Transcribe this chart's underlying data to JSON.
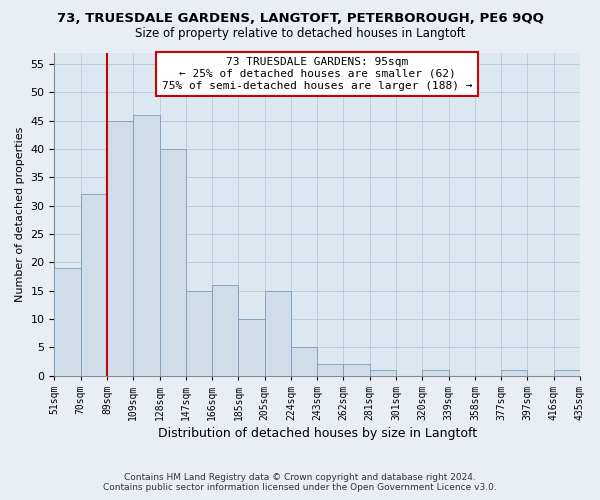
{
  "title": "73, TRUESDALE GARDENS, LANGTOFT, PETERBOROUGH, PE6 9QQ",
  "subtitle": "Size of property relative to detached houses in Langtoft",
  "xlabel": "Distribution of detached houses by size in Langtoft",
  "ylabel": "Number of detached properties",
  "bar_labels": [
    "51sqm",
    "70sqm",
    "89sqm",
    "109sqm",
    "128sqm",
    "147sqm",
    "166sqm",
    "185sqm",
    "205sqm",
    "224sqm",
    "243sqm",
    "262sqm",
    "281sqm",
    "301sqm",
    "320sqm",
    "339sqm",
    "358sqm",
    "377sqm",
    "397sqm",
    "416sqm",
    "435sqm"
  ],
  "bar_values": [
    19,
    32,
    45,
    46,
    40,
    15,
    16,
    10,
    15,
    5,
    2,
    2,
    1,
    0,
    1,
    0,
    0,
    1,
    0,
    1
  ],
  "bar_color": "#cfdce9",
  "bar_edge_color": "#7a9cbf",
  "vline_x": 2,
  "vline_color": "#cc0000",
  "annotation_text": "73 TRUESDALE GARDENS: 95sqm\n← 25% of detached houses are smaller (62)\n75% of semi-detached houses are larger (188) →",
  "annotation_box_color": "#ffffff",
  "annotation_box_edge": "#cc0000",
  "ylim": [
    0,
    57
  ],
  "yticks": [
    0,
    5,
    10,
    15,
    20,
    25,
    30,
    35,
    40,
    45,
    50,
    55
  ],
  "footer_line1": "Contains HM Land Registry data © Crown copyright and database right 2024.",
  "footer_line2": "Contains public sector information licensed under the Open Government Licence v3.0.",
  "bg_color": "#e8eef4",
  "plot_bg_color": "#dce8f0"
}
